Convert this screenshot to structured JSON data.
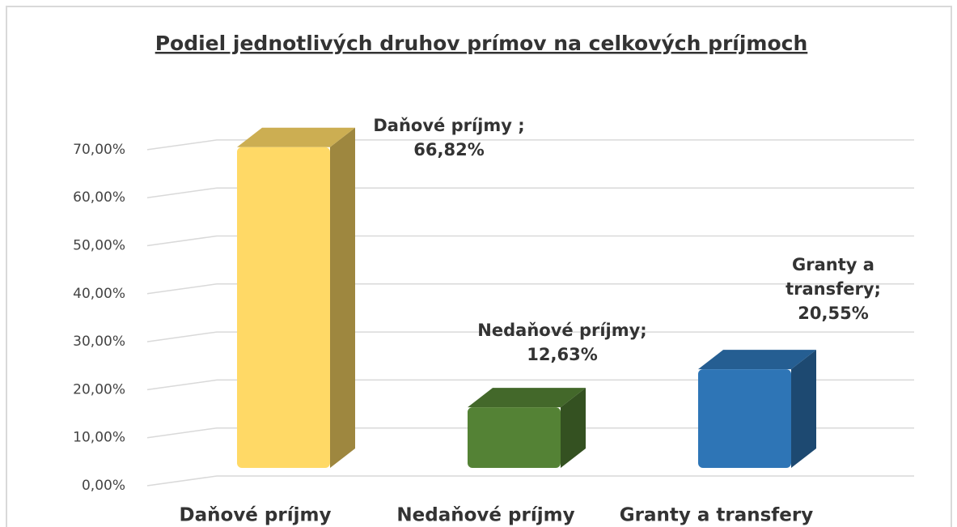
{
  "chart_data": {
    "type": "bar3d",
    "title": "Podiel jednotlivých druhov prímov na celkových príjmoch",
    "categories": [
      "Daňové príjmy",
      "Nedaňové príjmy",
      "Granty a transfery"
    ],
    "values": [
      66.82,
      12.63,
      20.55
    ],
    "value_labels": [
      "Daňové príjmy ; 66,82%",
      "Nedaňové príjmy; 12,63%",
      "Granty a transfery; 20,55%"
    ],
    "colors": [
      "#ffd966",
      "#548235",
      "#2e75b6"
    ],
    "ylim": [
      0,
      80
    ],
    "yticks": [
      {
        "value": 0,
        "label": "0,00%"
      },
      {
        "value": 10,
        "label": "10,00%"
      },
      {
        "value": 20,
        "label": "20,00%"
      },
      {
        "value": 30,
        "label": "30,00%"
      },
      {
        "value": 40,
        "label": "40,00%"
      },
      {
        "value": 50,
        "label": "50,00%"
      },
      {
        "value": 60,
        "label": "60,00%"
      },
      {
        "value": 70,
        "label": "70,00%"
      }
    ],
    "grid": true
  }
}
